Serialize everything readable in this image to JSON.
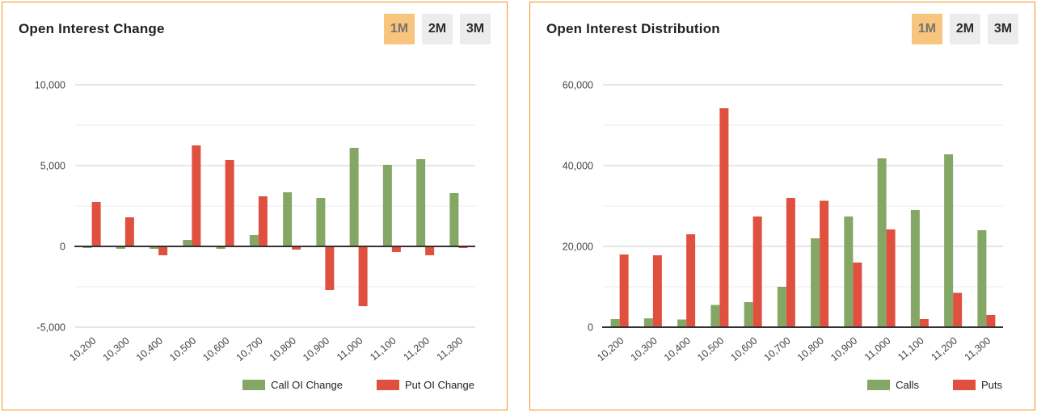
{
  "style": {
    "panel_border": "#ef931f",
    "button_active_bg": "#f8c57e",
    "button_inactive_bg": "#ececec",
    "call_green": "#85a765",
    "put_red": "#e0503f",
    "gridline_major": "#cccccc",
    "gridline_minor": "#ebebeb",
    "axis_line": "#333333",
    "tick_label_color": "#444444"
  },
  "panels": [
    {
      "title": "Open Interest Change",
      "range_buttons": [
        {
          "label": "1M",
          "active": true
        },
        {
          "label": "2M",
          "active": false
        },
        {
          "label": "3M",
          "active": false
        }
      ]
    },
    {
      "title": "Open Interest Distribution",
      "range_buttons": [
        {
          "label": "1M",
          "active": true
        },
        {
          "label": "2M",
          "active": false
        },
        {
          "label": "3M",
          "active": false
        }
      ]
    }
  ],
  "chart_data": [
    {
      "type": "bar",
      "title": "Open Interest Change",
      "categories": [
        "10,200",
        "10,300",
        "10,400",
        "10,500",
        "10,600",
        "10,700",
        "10,800",
        "10,900",
        "11,000",
        "11,100",
        "11,200",
        "11,300"
      ],
      "series": [
        {
          "name": "Call OI Change",
          "color": "#85a765",
          "values": [
            -100,
            -150,
            -150,
            400,
            -150,
            700,
            3350,
            3000,
            6100,
            5050,
            5400,
            3300
          ]
        },
        {
          "name": "Put OI Change",
          "color": "#e0503f",
          "values": [
            2750,
            1800,
            -550,
            6250,
            5350,
            3100,
            -200,
            -2700,
            -3700,
            -350,
            -550,
            -100
          ]
        }
      ],
      "xlabel": "",
      "ylabel": "",
      "ylim": [
        -5000,
        10000
      ],
      "y_major_ticks": [
        -5000,
        0,
        5000,
        10000
      ],
      "y_minor_step": 2500,
      "grid": true,
      "legend_position": "bottom-right"
    },
    {
      "type": "bar",
      "title": "Open Interest Distribution",
      "categories": [
        "10,200",
        "10,300",
        "10,400",
        "10,500",
        "10,600",
        "10,700",
        "10,800",
        "10,900",
        "11,000",
        "11,100",
        "11,200",
        "11,300"
      ],
      "series": [
        {
          "name": "Calls",
          "color": "#85a765",
          "values": [
            2000,
            2200,
            1900,
            5500,
            6200,
            10000,
            22000,
            27400,
            41800,
            29000,
            42800,
            24000
          ]
        },
        {
          "name": "Puts",
          "color": "#e0503f",
          "values": [
            18000,
            17800,
            23000,
            54200,
            27400,
            32000,
            31300,
            16000,
            24200,
            2000,
            8500,
            3000
          ]
        }
      ],
      "xlabel": "",
      "ylabel": "",
      "ylim": [
        0,
        60000
      ],
      "y_major_ticks": [
        0,
        20000,
        40000,
        60000
      ],
      "y_minor_step": 10000,
      "grid": true,
      "legend_position": "bottom-right"
    }
  ]
}
